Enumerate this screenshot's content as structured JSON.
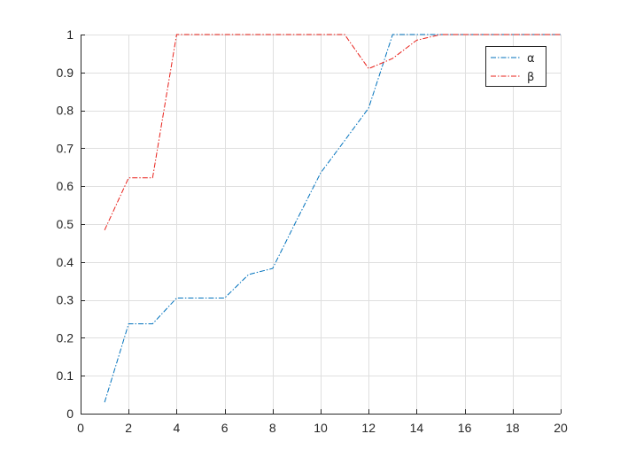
{
  "chart_data": {
    "type": "line",
    "title": "",
    "xlabel": "",
    "ylabel": "",
    "xlim": [
      0,
      20
    ],
    "ylim": [
      0,
      1
    ],
    "xticks": [
      0,
      2,
      4,
      6,
      8,
      10,
      12,
      14,
      16,
      18,
      20
    ],
    "xtick_labels": [
      "0",
      "2",
      "4",
      "6",
      "8",
      "10",
      "12",
      "14",
      "16",
      "18",
      "20"
    ],
    "yticks": [
      0,
      0.1,
      0.2,
      0.3,
      0.4,
      0.5,
      0.6,
      0.7,
      0.8,
      0.9,
      1
    ],
    "ytick_labels": [
      "0",
      "0.1",
      "0.2",
      "0.3",
      "0.4",
      "0.5",
      "0.6",
      "0.7",
      "0.8",
      "0.9",
      "1"
    ],
    "grid": true,
    "legend_position": "top-right",
    "line_style": "dash-dot",
    "series": [
      {
        "name": "α",
        "color": "#0072BD",
        "x": [
          1,
          2,
          3,
          4,
          5,
          6,
          7,
          8,
          9,
          10,
          11,
          12,
          13,
          14,
          15,
          16,
          17,
          18,
          19,
          20
        ],
        "values": [
          0.03,
          0.237,
          0.237,
          0.305,
          0.305,
          0.305,
          0.367,
          0.383,
          0.51,
          0.635,
          0.72,
          0.806,
          1,
          1,
          1,
          1,
          1,
          1,
          1,
          1
        ]
      },
      {
        "name": "β",
        "color": "#E8201A",
        "x": [
          1,
          2,
          3,
          4,
          5,
          6,
          7,
          8,
          9,
          10,
          11,
          12,
          13,
          14,
          15,
          16,
          17,
          18,
          19,
          20
        ],
        "values": [
          0.484,
          0.622,
          0.622,
          1,
          1,
          1,
          1,
          1,
          1,
          1,
          1,
          0.91,
          0.937,
          0.985,
          1,
          1,
          1,
          1,
          1,
          1
        ]
      }
    ]
  }
}
